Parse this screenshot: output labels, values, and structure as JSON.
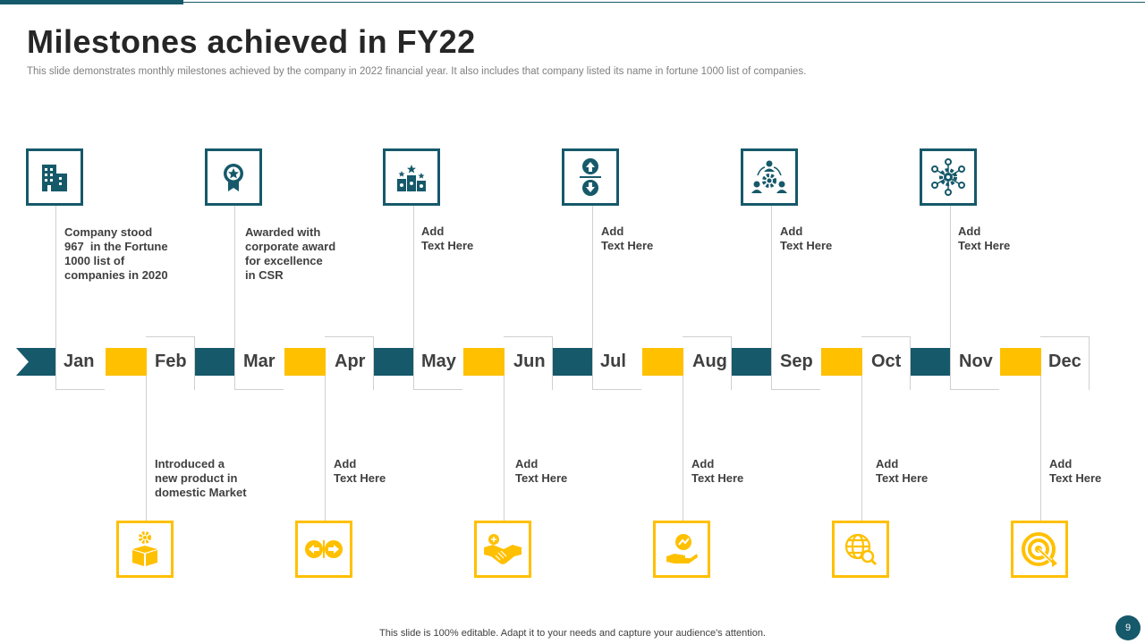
{
  "header": {
    "title": "Milestones achieved in FY22",
    "subtitle": "This slide demonstrates monthly milestones achieved by the company in 2022 financial year. It also includes that company listed its name in fortune 1000 list of companies."
  },
  "colors": {
    "primary": "#16596a",
    "accent": "#ffc000",
    "text": "#404040",
    "muted": "#7f7f7f"
  },
  "timeline": {
    "months": [
      "Jan",
      "Feb",
      "Mar",
      "Apr",
      "May",
      "Jun",
      "Jul",
      "Aug",
      "Sep",
      "Oct",
      "Nov",
      "Dec"
    ]
  },
  "milestones": {
    "jan": {
      "lines": [
        "Company stood",
        "967  in the Fortune",
        "1000 list of",
        "companies in 2020"
      ],
      "icon": "office-building-icon"
    },
    "feb": {
      "lines": [
        "Introduced a",
        "new product in",
        "domestic Market"
      ],
      "icon": "product-box-gear-icon"
    },
    "mar": {
      "lines": [
        "Awarded with",
        "corporate award",
        "for excellence",
        "in CSR"
      ],
      "icon": "award-badge-icon"
    },
    "apr": {
      "lines": [
        "Add",
        "Text Here"
      ],
      "icon": "left-right-arrows-icon"
    },
    "may": {
      "lines": [
        "Add",
        "Text Here"
      ],
      "icon": "podium-stars-icon"
    },
    "jun": {
      "lines": [
        "Add",
        "Text Here"
      ],
      "icon": "handshake-icon"
    },
    "jul": {
      "lines": [
        "Add",
        "Text Here"
      ],
      "icon": "up-down-arrows-icon"
    },
    "aug": {
      "lines": [
        "Add",
        "Text Here"
      ],
      "icon": "hand-growth-icon"
    },
    "sep": {
      "lines": [
        "Add",
        "Text Here"
      ],
      "icon": "team-gear-icon"
    },
    "oct": {
      "lines": [
        "Add",
        "Text Here"
      ],
      "icon": "globe-search-icon"
    },
    "nov": {
      "lines": [
        "Add",
        "Text Here"
      ],
      "icon": "gear-network-icon"
    },
    "dec": {
      "lines": [
        "Add",
        "Text Here"
      ],
      "icon": "target-icon"
    }
  },
  "footer": {
    "note": "This slide is 100% editable.  Adapt it to your needs and capture your audience's attention.",
    "page_number": "9"
  }
}
